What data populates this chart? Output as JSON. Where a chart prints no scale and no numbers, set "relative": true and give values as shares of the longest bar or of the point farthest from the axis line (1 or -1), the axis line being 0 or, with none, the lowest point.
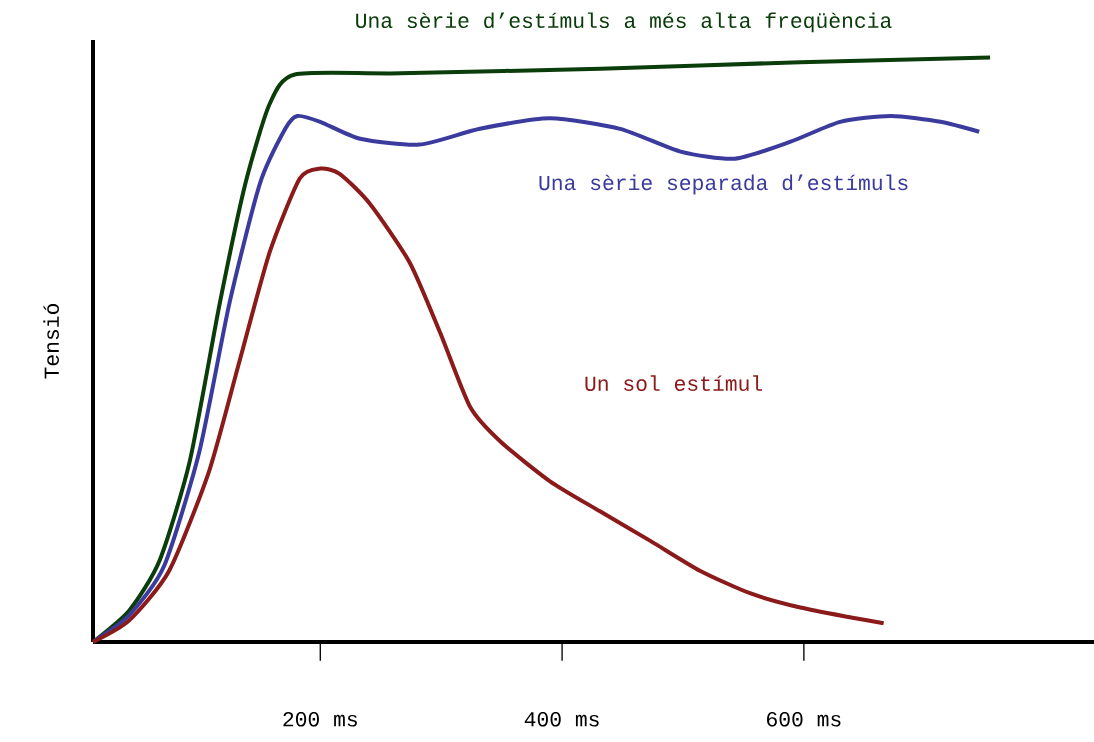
{
  "chart_data": {
    "type": "line",
    "relative": true,
    "ylabel": "Tensió",
    "xlim": [
      12,
      840
    ],
    "xticks": [
      {
        "value": 200,
        "label": "200 ms"
      },
      {
        "value": 400,
        "label": "400 ms"
      },
      {
        "value": 600,
        "label": "600 ms"
      }
    ],
    "tick_labels": "x",
    "marker": "none",
    "line_style": "solid",
    "series": [
      {
        "name": "Una sèrie d’estímuls a més alta freqüència",
        "color": "#0b3d0b",
        "x": [
          12,
          42,
          67,
          92,
          117,
          138,
          158,
          179,
          266,
          432,
          597,
          754
        ],
        "values": [
          0,
          0.054,
          0.139,
          0.309,
          0.581,
          0.784,
          0.92,
          0.971,
          0.973,
          0.981,
          0.992,
          1
        ]
      },
      {
        "name": "Una sèrie separada d’estímuls",
        "color": "#3b3b9e",
        "x": [
          12,
          42,
          71,
          100,
          125,
          150,
          171,
          181,
          200,
          233,
          282,
          332,
          390,
          448,
          498,
          543,
          589,
          630,
          672,
          713,
          745
        ],
        "values": [
          0,
          0.046,
          0.131,
          0.326,
          0.581,
          0.784,
          0.878,
          0.9,
          0.89,
          0.861,
          0.851,
          0.878,
          0.896,
          0.878,
          0.839,
          0.827,
          0.856,
          0.89,
          0.9,
          0.89,
          0.873
        ]
      },
      {
        "name": "Un sol estímul",
        "color": "#8b1a1a",
        "x": [
          12,
          42,
          75,
          108,
          133,
          158,
          183,
          200,
          216,
          241,
          274,
          299,
          324,
          349,
          390,
          431,
          473,
          514,
          556,
          597,
          639,
          666
        ],
        "values": [
          0,
          0.037,
          0.122,
          0.292,
          0.479,
          0.666,
          0.793,
          0.81,
          0.801,
          0.75,
          0.649,
          0.53,
          0.402,
          0.343,
          0.275,
          0.224,
          0.173,
          0.122,
          0.083,
          0.059,
          0.042,
          0.032
        ]
      }
    ]
  }
}
